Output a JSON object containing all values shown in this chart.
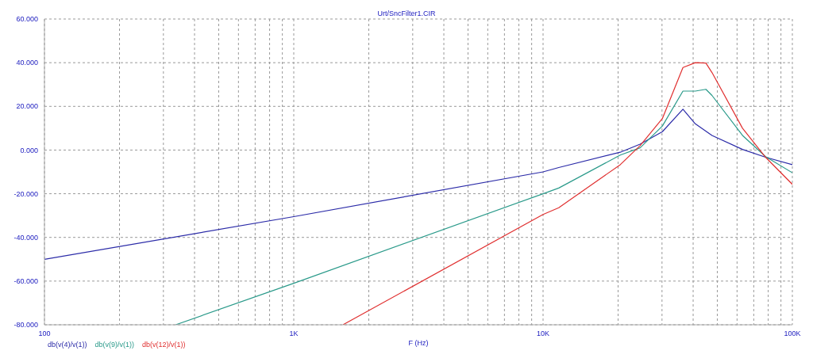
{
  "chart_data": {
    "type": "line",
    "title": "Urt/SncFilter1.CIR",
    "xlabel": "F (Hz)",
    "log": "x",
    "grid": true,
    "legend": "bottom left",
    "marker": "none",
    "line_style": "solid",
    "xlim": [
      100,
      100000
    ],
    "xticks": [
      {
        "value": 100,
        "label": "100"
      },
      {
        "value": 200,
        "label": null
      },
      {
        "value": 300,
        "label": null
      },
      {
        "value": 400,
        "label": null
      },
      {
        "value": 500,
        "label": null
      },
      {
        "value": 600,
        "label": null
      },
      {
        "value": 700,
        "label": null
      },
      {
        "value": 800,
        "label": null
      },
      {
        "value": 900,
        "label": null
      },
      {
        "value": 1000,
        "label": "1K"
      },
      {
        "value": 2000,
        "label": null
      },
      {
        "value": 3000,
        "label": null
      },
      {
        "value": 4000,
        "label": null
      },
      {
        "value": 5000,
        "label": null
      },
      {
        "value": 6000,
        "label": null
      },
      {
        "value": 7000,
        "label": null
      },
      {
        "value": 8000,
        "label": null
      },
      {
        "value": 9000,
        "label": null
      },
      {
        "value": 10000,
        "label": "10K"
      },
      {
        "value": 20000,
        "label": null
      },
      {
        "value": 30000,
        "label": null
      },
      {
        "value": 40000,
        "label": null
      },
      {
        "value": 50000,
        "label": null
      },
      {
        "value": 60000,
        "label": null
      },
      {
        "value": 70000,
        "label": null
      },
      {
        "value": 80000,
        "label": null
      },
      {
        "value": 90000,
        "label": null
      },
      {
        "value": 100000,
        "label": "100K"
      }
    ],
    "ylim": [
      -80,
      60
    ],
    "yticks": [
      {
        "value": -80,
        "label": "-80.000"
      },
      {
        "value": -60,
        "label": "-60.000"
      },
      {
        "value": -40,
        "label": "-40.000"
      },
      {
        "value": -20,
        "label": "-20.000"
      },
      {
        "value": 0,
        "label": "0.000"
      },
      {
        "value": 20,
        "label": "20.000"
      },
      {
        "value": 40,
        "label": "40.000"
      },
      {
        "value": 60,
        "label": "60.000"
      }
    ],
    "series": [
      {
        "name": "db(v(4)/v(1))",
        "color": "#2b2ba8",
        "x": [
          100,
          1000,
          10000,
          11560,
          20400,
          24500,
          30100,
          36400,
          40800,
          47600,
          63100,
          78100,
          100000
        ],
        "values": [
          -50,
          -30.5,
          -10,
          -8,
          -1,
          2.7,
          8.4,
          18.7,
          12,
          6.7,
          0.3,
          -3.3,
          -6.7
        ]
      },
      {
        "name": "db(v(9)/v(1))",
        "color": "#2a9a8a",
        "x": [
          336,
          1000,
          10000,
          11560,
          20400,
          24500,
          30100,
          36400,
          40800,
          45000,
          47600,
          63100,
          78100,
          100000
        ],
        "values": [
          -80,
          -61,
          -20,
          -17.4,
          -2.3,
          1,
          11,
          27,
          27,
          27.8,
          25,
          6.7,
          -3,
          -10.4
        ]
      },
      {
        "name": "db(v(12)/v(1))",
        "color": "#e03030",
        "x": [
          1575,
          10000,
          11560,
          20400,
          24500,
          30100,
          36400,
          40800,
          45000,
          47600,
          63100,
          78100,
          100000
        ],
        "values": [
          -80,
          -29.5,
          -26.4,
          -6.7,
          2,
          14.4,
          37.8,
          40,
          39.8,
          35.5,
          10,
          -3.3,
          -15.7
        ]
      }
    ]
  }
}
